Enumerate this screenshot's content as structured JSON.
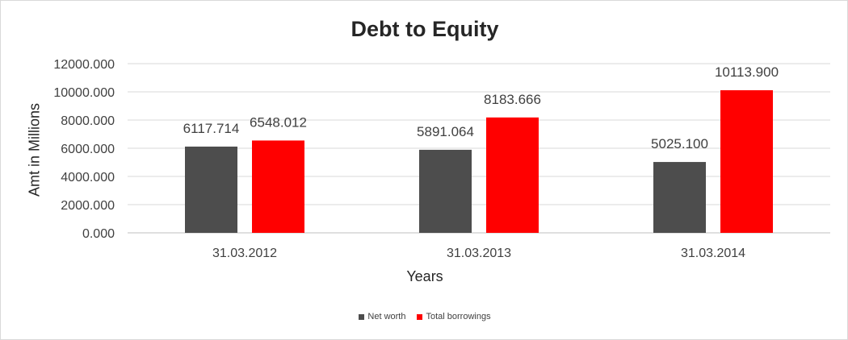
{
  "chart_data": {
    "type": "bar",
    "title": "Debt to Equity",
    "xlabel": "Years",
    "ylabel": "Amt in Millions",
    "categories": [
      "31.03.2012",
      "31.03.2013",
      "31.03.2014"
    ],
    "series": [
      {
        "name": "Net worth",
        "values": [
          6117.714,
          5891.064,
          5025.1
        ],
        "labels": [
          "6117.714",
          "5891.064",
          "5025.100"
        ],
        "color": "#4d4d4d"
      },
      {
        "name": "Total borrowings",
        "values": [
          6548.012,
          8183.666,
          10113.9
        ],
        "labels": [
          "6548.012",
          "8183.666",
          "10113.900"
        ],
        "color": "#ff0000"
      }
    ],
    "ylim": [
      0,
      12000
    ],
    "yticks": [
      "0.000",
      "2000.000",
      "4000.000",
      "6000.000",
      "8000.000",
      "10000.000",
      "12000.000"
    ],
    "grid": true,
    "legend_position": "bottom"
  }
}
